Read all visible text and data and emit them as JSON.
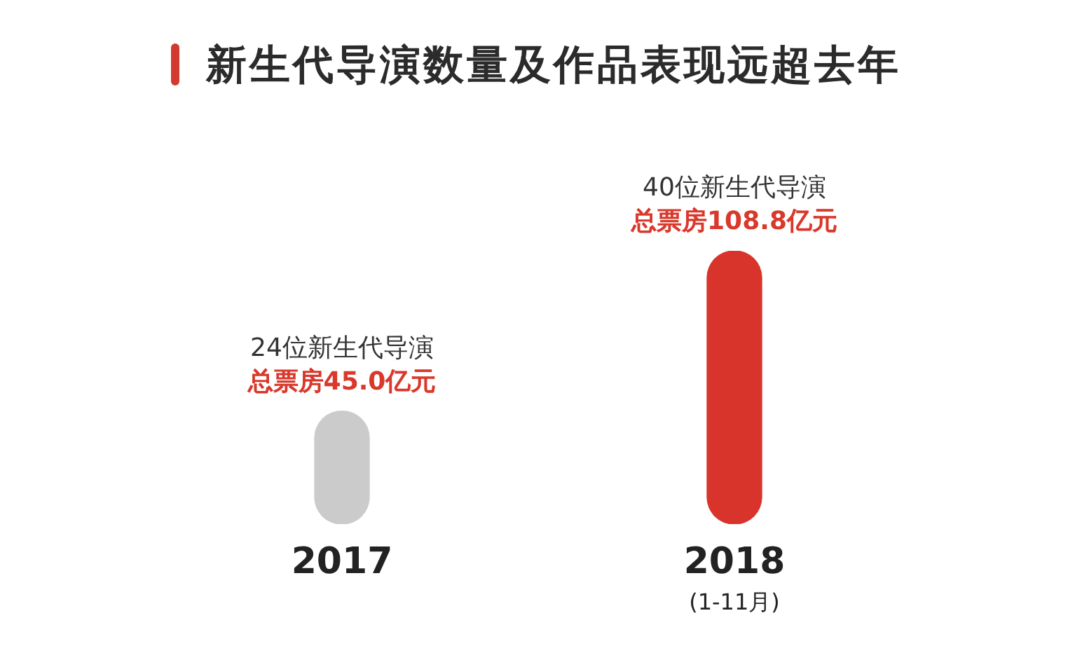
{
  "chart_data": {
    "type": "bar",
    "title": "新生代导演数量及作品表现远超去年",
    "categories": [
      "2017",
      "2018\n(1-11月)"
    ],
    "values": [
      45.0,
      108.8
    ],
    "colors": [
      "#cbcbcb",
      "#d9342b"
    ],
    "value_labels": [
      "总票房45.0亿元",
      "总票房108.8亿元"
    ],
    "annotations": [
      {
        "text": "24位新生代导演",
        "x": "2017",
        "y": 45.0
      },
      {
        "text": "40位新生代导演",
        "x": "2018\n(1-11月)",
        "y": 108.8
      }
    ]
  }
}
